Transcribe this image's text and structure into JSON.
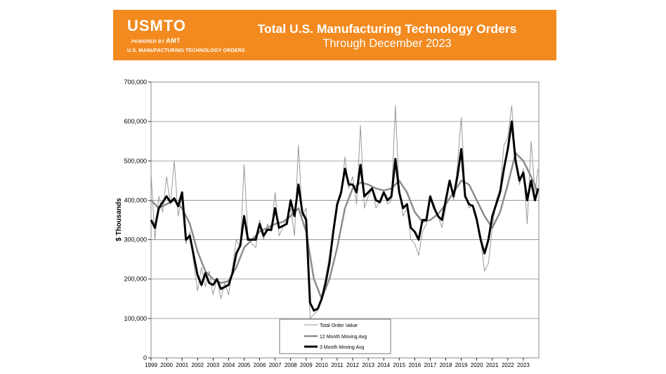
{
  "brand": {
    "logo_text": "USMTO",
    "powered_by": "POWERED BY",
    "powered_brand": "AMT",
    "logo_subtitle": "U.S. MANUFACTURING TECHNOLOGY ORDERS"
  },
  "colors": {
    "banner": "#f28a1f",
    "raw": "#9a9a9a",
    "ma12": "#8c8c8c",
    "ma3": "#000000",
    "grid": "#8a8a8a"
  },
  "chart_data": {
    "type": "line",
    "title": "Total U.S. Manufacturing Technology Orders",
    "subtitle": "Through December 2023",
    "ylabel": "$ Thousands",
    "xlabel": "",
    "ylim": [
      0,
      700000
    ],
    "yticks": [
      0,
      100000,
      200000,
      300000,
      400000,
      500000,
      600000,
      700000
    ],
    "ytick_labels": [
      "0",
      "100,000",
      "200,000",
      "300,000",
      "400,000",
      "500,000",
      "600,000",
      "700,000"
    ],
    "xlim": [
      1999,
      2024
    ],
    "xtick_labels": [
      "1999",
      "2000",
      "2001",
      "2002",
      "2003",
      "2004",
      "2005",
      "2006",
      "2007",
      "2008",
      "2009",
      "2010",
      "2011",
      "2012",
      "2013",
      "2014",
      "2015",
      "2016",
      "2017",
      "2018",
      "2019",
      "2020",
      "2021",
      "2022",
      "2023"
    ],
    "grid": true,
    "legend_position": "bottom-center",
    "series": [
      {
        "name": "Total Order Value",
        "style": "thin",
        "x": [
          1999.0,
          1999.25,
          1999.5,
          1999.75,
          2000.0,
          2000.25,
          2000.5,
          2000.75,
          2001.0,
          2001.25,
          2001.5,
          2001.75,
          2002.0,
          2002.25,
          2002.5,
          2002.75,
          2003.0,
          2003.25,
          2003.5,
          2003.75,
          2004.0,
          2004.25,
          2004.5,
          2004.75,
          2005.0,
          2005.25,
          2005.5,
          2005.75,
          2006.0,
          2006.25,
          2006.5,
          2006.75,
          2007.0,
          2007.25,
          2007.5,
          2007.75,
          2008.0,
          2008.25,
          2008.5,
          2008.75,
          2009.0,
          2009.25,
          2009.5,
          2009.75,
          2010.0,
          2010.25,
          2010.5,
          2010.75,
          2011.0,
          2011.25,
          2011.5,
          2011.75,
          2012.0,
          2012.25,
          2012.5,
          2012.75,
          2013.0,
          2013.25,
          2013.5,
          2013.75,
          2014.0,
          2014.25,
          2014.5,
          2014.75,
          2015.0,
          2015.25,
          2015.5,
          2015.75,
          2016.0,
          2016.25,
          2016.5,
          2016.75,
          2017.0,
          2017.25,
          2017.5,
          2017.75,
          2018.0,
          2018.25,
          2018.5,
          2018.75,
          2019.0,
          2019.25,
          2019.5,
          2019.75,
          2020.0,
          2020.25,
          2020.5,
          2020.75,
          2021.0,
          2021.25,
          2021.5,
          2021.75,
          2022.0,
          2022.25,
          2022.5,
          2022.75,
          2023.0,
          2023.25,
          2023.5,
          2023.75,
          2023.95
        ],
        "values": [
          470000,
          300000,
          410000,
          370000,
          460000,
          390000,
          500000,
          360000,
          410000,
          290000,
          320000,
          240000,
          170000,
          230000,
          180000,
          220000,
          160000,
          200000,
          150000,
          190000,
          160000,
          230000,
          300000,
          280000,
          490000,
          310000,
          290000,
          280000,
          350000,
          300000,
          340000,
          320000,
          420000,
          310000,
          330000,
          350000,
          380000,
          310000,
          540000,
          360000,
          380000,
          100000,
          110000,
          120000,
          150000,
          200000,
          260000,
          330000,
          390000,
          410000,
          510000,
          430000,
          460000,
          390000,
          590000,
          380000,
          410000,
          430000,
          380000,
          400000,
          420000,
          390000,
          400000,
          640000,
          420000,
          360000,
          380000,
          300000,
          290000,
          260000,
          320000,
          340000,
          410000,
          390000,
          360000,
          330000,
          380000,
          450000,
          400000,
          490000,
          610000,
          420000,
          380000,
          390000,
          360000,
          300000,
          220000,
          240000,
          330000,
          400000,
          430000,
          540000,
          560000,
          640000,
          510000,
          440000,
          480000,
          340000,
          550000,
          420000,
          480000
        ]
      },
      {
        "name": "12 Month Moving Avg",
        "style": "medium",
        "x": [
          1999.0,
          1999.5,
          2000.0,
          2000.5,
          2001.0,
          2001.5,
          2002.0,
          2002.5,
          2003.0,
          2003.5,
          2004.0,
          2004.5,
          2005.0,
          2005.5,
          2006.0,
          2006.5,
          2007.0,
          2007.5,
          2008.0,
          2008.5,
          2009.0,
          2009.5,
          2010.0,
          2010.5,
          2011.0,
          2011.5,
          2012.0,
          2012.5,
          2013.0,
          2013.5,
          2014.0,
          2014.5,
          2015.0,
          2015.5,
          2016.0,
          2016.5,
          2017.0,
          2017.5,
          2018.0,
          2018.5,
          2019.0,
          2019.5,
          2020.0,
          2020.5,
          2021.0,
          2021.5,
          2022.0,
          2022.5,
          2023.0,
          2023.5,
          2023.95
        ],
        "values": [
          400000,
          380000,
          390000,
          400000,
          380000,
          340000,
          270000,
          220000,
          200000,
          190000,
          195000,
          230000,
          280000,
          300000,
          320000,
          330000,
          340000,
          345000,
          360000,
          380000,
          320000,
          200000,
          150000,
          200000,
          280000,
          380000,
          430000,
          445000,
          440000,
          430000,
          425000,
          430000,
          450000,
          420000,
          370000,
          345000,
          350000,
          365000,
          390000,
          420000,
          450000,
          440000,
          400000,
          360000,
          330000,
          370000,
          440000,
          520000,
          500000,
          460000,
          420000
        ]
      },
      {
        "name": "3 Month Moving Avg",
        "style": "thick",
        "x": [
          1999.0,
          1999.25,
          1999.5,
          1999.75,
          2000.0,
          2000.25,
          2000.5,
          2000.75,
          2001.0,
          2001.25,
          2001.5,
          2001.75,
          2002.0,
          2002.25,
          2002.5,
          2002.75,
          2003.0,
          2003.25,
          2003.5,
          2003.75,
          2004.0,
          2004.25,
          2004.5,
          2004.75,
          2005.0,
          2005.25,
          2005.5,
          2005.75,
          2006.0,
          2006.25,
          2006.5,
          2006.75,
          2007.0,
          2007.25,
          2007.5,
          2007.75,
          2008.0,
          2008.25,
          2008.5,
          2008.75,
          2009.0,
          2009.25,
          2009.5,
          2009.75,
          2010.0,
          2010.25,
          2010.5,
          2010.75,
          2011.0,
          2011.25,
          2011.5,
          2011.75,
          2012.0,
          2012.25,
          2012.5,
          2012.75,
          2013.0,
          2013.25,
          2013.5,
          2013.75,
          2014.0,
          2014.25,
          2014.5,
          2014.75,
          2015.0,
          2015.25,
          2015.5,
          2015.75,
          2016.0,
          2016.25,
          2016.5,
          2016.75,
          2017.0,
          2017.25,
          2017.5,
          2017.75,
          2018.0,
          2018.25,
          2018.5,
          2018.75,
          2019.0,
          2019.25,
          2019.5,
          2019.75,
          2020.0,
          2020.25,
          2020.5,
          2020.75,
          2021.0,
          2021.25,
          2021.5,
          2021.75,
          2022.0,
          2022.25,
          2022.5,
          2022.75,
          2023.0,
          2023.25,
          2023.5,
          2023.75,
          2023.95
        ],
        "values": [
          350000,
          330000,
          380000,
          395000,
          410000,
          395000,
          405000,
          385000,
          420000,
          300000,
          310000,
          260000,
          210000,
          185000,
          215000,
          190000,
          185000,
          200000,
          175000,
          180000,
          185000,
          215000,
          265000,
          285000,
          360000,
          300000,
          300000,
          300000,
          340000,
          310000,
          325000,
          325000,
          380000,
          330000,
          335000,
          340000,
          400000,
          360000,
          440000,
          370000,
          350000,
          140000,
          120000,
          125000,
          150000,
          190000,
          240000,
          320000,
          390000,
          420000,
          480000,
          440000,
          440000,
          420000,
          490000,
          410000,
          420000,
          430000,
          400000,
          395000,
          420000,
          400000,
          410000,
          505000,
          420000,
          380000,
          390000,
          330000,
          320000,
          300000,
          350000,
          350000,
          410000,
          380000,
          360000,
          350000,
          400000,
          450000,
          410000,
          460000,
          530000,
          410000,
          390000,
          385000,
          350000,
          300000,
          265000,
          300000,
          360000,
          390000,
          420000,
          480000,
          530000,
          600000,
          500000,
          450000,
          470000,
          400000,
          450000,
          400000,
          430000
        ]
      }
    ]
  }
}
